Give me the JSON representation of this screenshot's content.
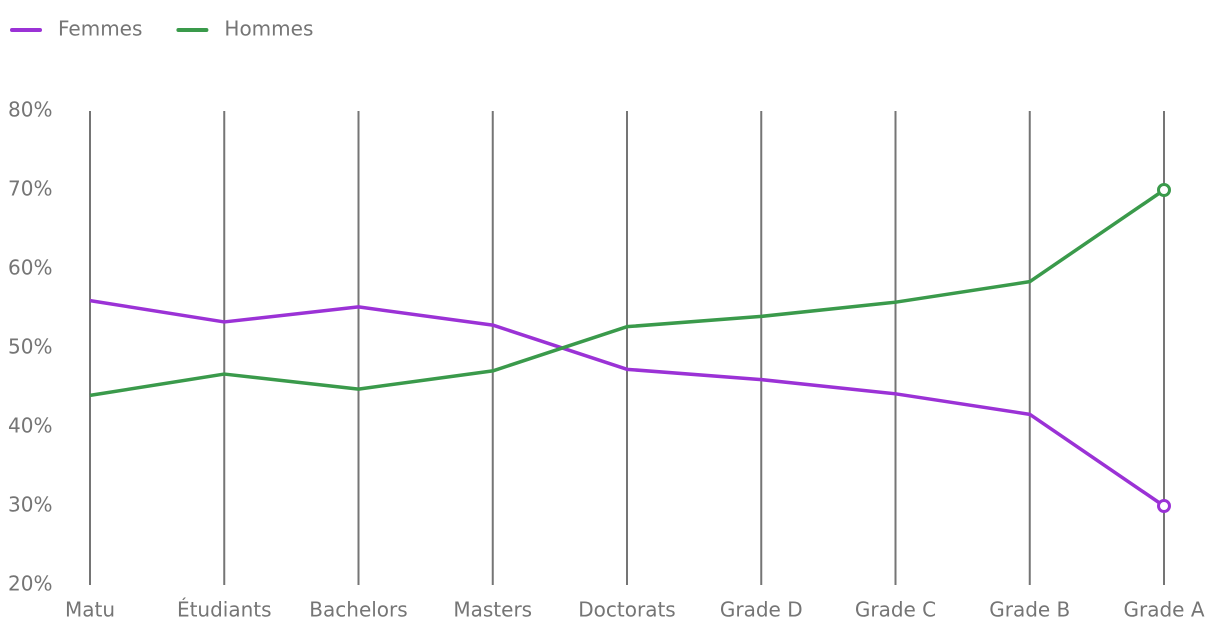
{
  "chart_data": {
    "type": "line",
    "categories": [
      "Matu",
      "Étudiants",
      "Bachelors",
      "Masters",
      "Doctorats",
      "Grade D",
      "Grade C",
      "Grade B",
      "Grade A"
    ],
    "series": [
      {
        "name": "Femmes",
        "color": "#9b32d6",
        "values": [
          56,
          53.3,
          55.2,
          52.9,
          47.3,
          46,
          44.2,
          41.6,
          30
        ]
      },
      {
        "name": "Hommes",
        "color": "#3a9a4b",
        "values": [
          44,
          46.7,
          44.8,
          47.1,
          52.7,
          54,
          55.8,
          58.4,
          70
        ]
      }
    ],
    "ylim": [
      20,
      80
    ],
    "yticks": [
      {
        "value": 20,
        "label": "20%"
      },
      {
        "value": 30,
        "label": "30%"
      },
      {
        "value": 40,
        "label": "40%"
      },
      {
        "value": 50,
        "label": "50%"
      },
      {
        "value": 60,
        "label": "60%"
      },
      {
        "value": 70,
        "label": "70%"
      },
      {
        "value": 80,
        "label": "80%"
      }
    ],
    "grid": "x",
    "legend": "top-left",
    "end_markers": true
  }
}
